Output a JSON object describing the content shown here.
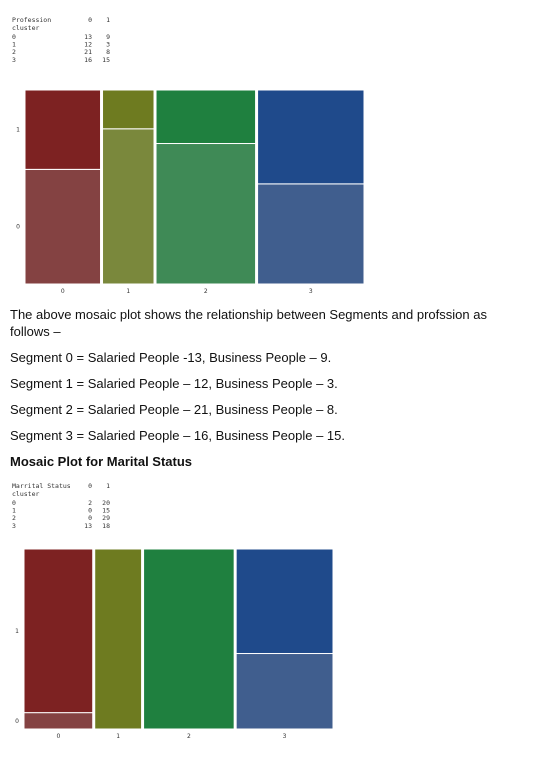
{
  "document": {
    "paragraph_lines": [
      "The above mosaic plot shows the relationship between Segments and profssion as",
      "follows –"
    ],
    "lines": [
      "Segment 0 = Salaried People -13, Business People – 9.",
      "Segment 1 = Salaried People – 12, Business People – 3.",
      "Segment 2 = Salaried People – 21, Business People – 8.",
      "Segment 3 = Salaried People – 16, Business People – 15."
    ],
    "heading": "Mosaic Plot for Marital Status"
  },
  "chart_data": [
    {
      "type": "mosaic",
      "row_label": "Profession",
      "index_label": "cluster",
      "categories": [
        "0",
        "1",
        "2",
        "3"
      ],
      "series": [
        {
          "name": "0",
          "colors": [
            "#844242",
            "#7a883c",
            "#3f8a56",
            "#405e8e"
          ],
          "values": [
            13,
            12,
            21,
            16
          ]
        },
        {
          "name": "1",
          "colors": [
            "#7d2222",
            "#6e7b20",
            "#1f803f",
            "#1f4a8b"
          ],
          "values": [
            9,
            3,
            8,
            15
          ]
        }
      ]
    },
    {
      "type": "mosaic",
      "row_label": "Marrital Status",
      "index_label": "cluster",
      "categories": [
        "0",
        "1",
        "2",
        "3"
      ],
      "series": [
        {
          "name": "0",
          "colors": [
            "#844242",
            "#7a883c",
            "#3f8a56",
            "#405e8e"
          ],
          "values": [
            2,
            0,
            0,
            13
          ]
        },
        {
          "name": "1",
          "colors": [
            "#7d2222",
            "#6e7b20",
            "#1f803f",
            "#1f4a8b"
          ],
          "values": [
            20,
            15,
            29,
            18
          ]
        }
      ]
    }
  ]
}
